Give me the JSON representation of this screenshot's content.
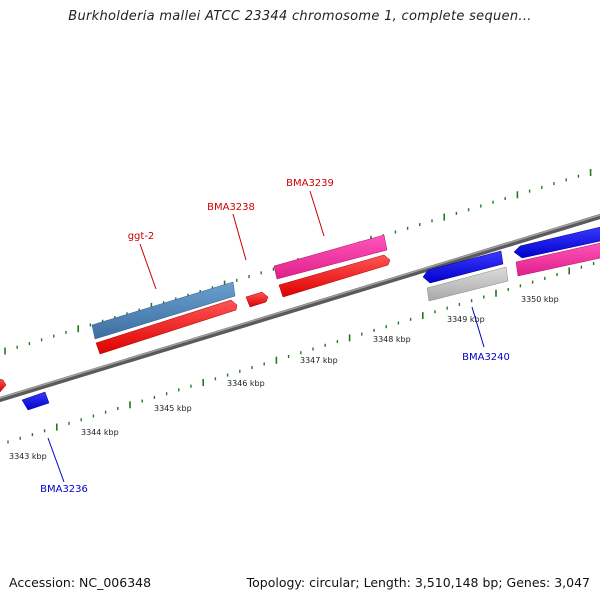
{
  "title": "Burkholderia mallei ATCC 23344 chromosome 1, complete sequen...",
  "footer": {
    "accession": "Accession: NC_006348",
    "topology": "Topology: circular; Length: 3,510,148 bp; Genes: 3,047"
  },
  "colors": {
    "backbone": "#777777",
    "tick": "#1f7a1f",
    "forward_label": "#cc0000",
    "reverse_label": "#0000cc"
  },
  "tick_labels": [
    "3343 kbp",
    "3344 kbp",
    "3345 kbp",
    "3346 kbp",
    "3347 kbp",
    "3348 kbp",
    "3349 kbp",
    "3350 kbp"
  ],
  "gene_labels": [
    {
      "text": "ggt-2",
      "strand": "forward"
    },
    {
      "text": "BMA3238",
      "strand": "forward"
    },
    {
      "text": "BMA3239",
      "strand": "forward"
    },
    {
      "text": "BMA3236",
      "strand": "reverse"
    },
    {
      "text": "BMA3240",
      "strand": "reverse"
    }
  ]
}
